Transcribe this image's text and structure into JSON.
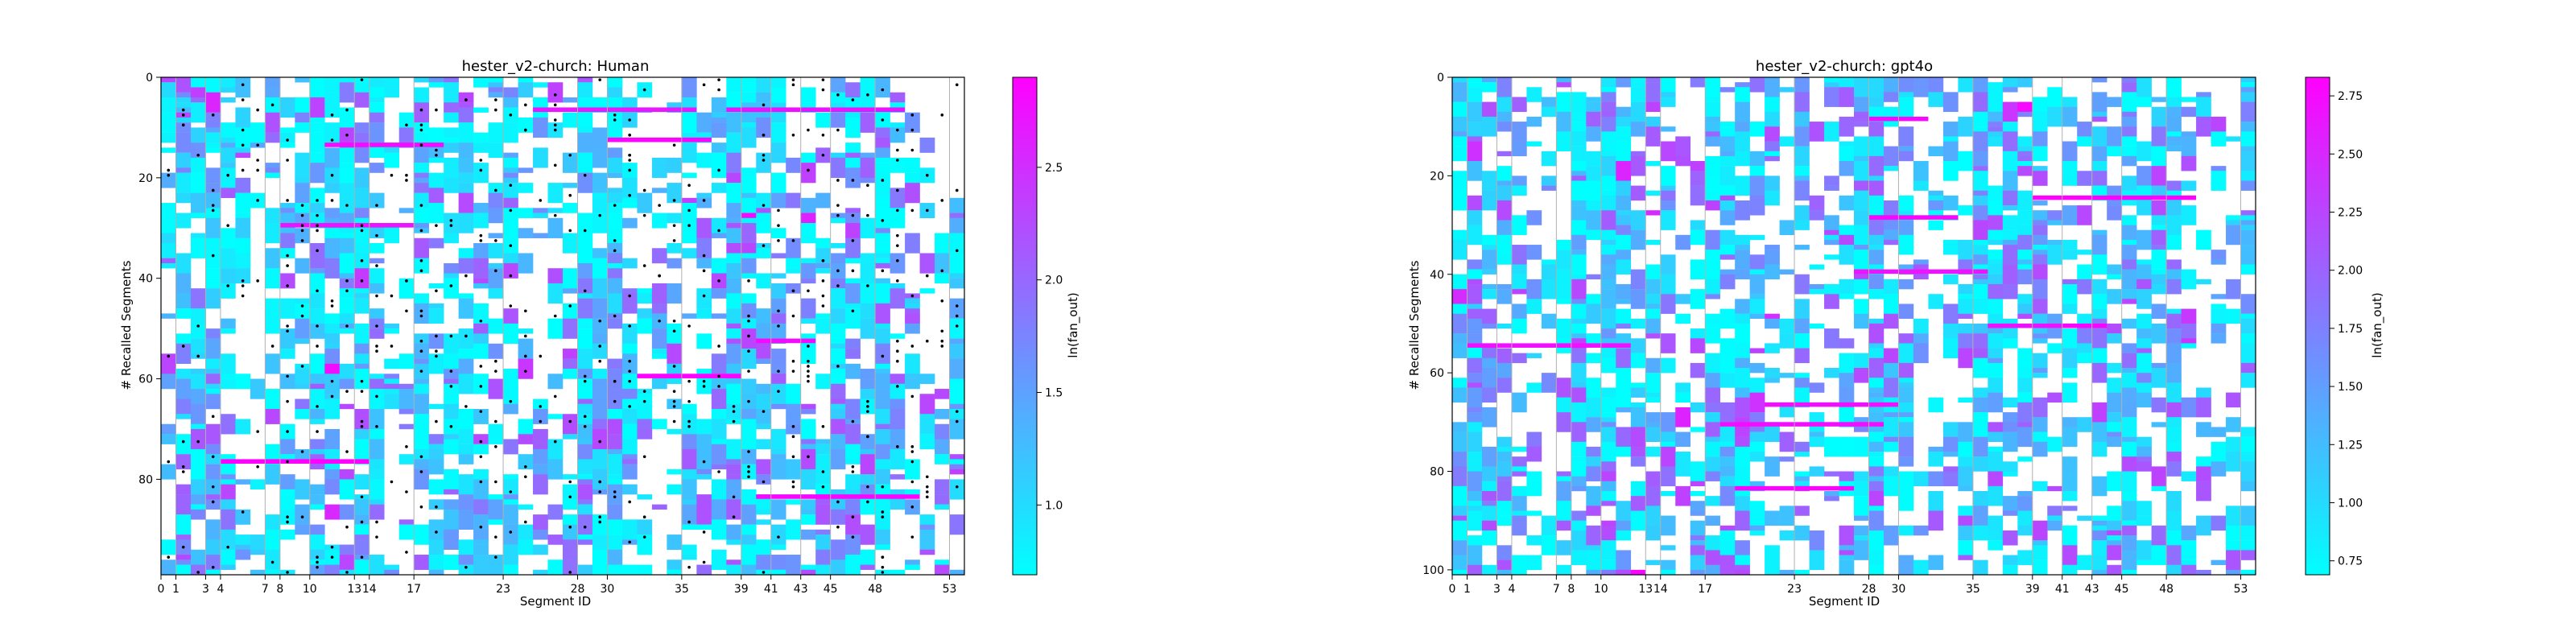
{
  "figure": {
    "background": "#ffffff"
  },
  "colormap": {
    "name": "cool",
    "low": "#00ffff",
    "high": "#ff00ff"
  },
  "chart_data": [
    {
      "type": "heatmap",
      "title": "hester_v2-church: Human",
      "xlabel": "Segment ID",
      "ylabel": "# Recalled Segments",
      "colorbar_label": "ln(fan_out)",
      "x_ticks": [
        0,
        1,
        3,
        4,
        7,
        8,
        10,
        13,
        14,
        17,
        23,
        28,
        30,
        35,
        39,
        41,
        43,
        45,
        48,
        53
      ],
      "xlim": [
        0,
        54
      ],
      "y_ticks": [
        0,
        20,
        40,
        60,
        80
      ],
      "ylim": [
        0,
        99
      ],
      "y_inverted": true,
      "colorbar_ticks": [
        1.0,
        1.5,
        2.0,
        2.5
      ],
      "colorbar_range": [
        0.69,
        2.9
      ],
      "vertical_separators": [
        0,
        1,
        3,
        4,
        7,
        8,
        10,
        13,
        14,
        17,
        23,
        28,
        30,
        35,
        39,
        41,
        43,
        45,
        48,
        53
      ],
      "has_dot_markers": true,
      "seed": 7
    },
    {
      "type": "heatmap",
      "title": "hester_v2-church: gpt4o",
      "xlabel": "Segment ID",
      "ylabel": "# Recalled Segments",
      "colorbar_label": "ln(fan_out)",
      "x_ticks": [
        0,
        1,
        3,
        4,
        7,
        8,
        10,
        13,
        14,
        17,
        23,
        28,
        30,
        35,
        39,
        41,
        43,
        45,
        48,
        53
      ],
      "xlim": [
        0,
        54
      ],
      "y_ticks": [
        0,
        20,
        40,
        60,
        80,
        100
      ],
      "ylim": [
        0,
        101
      ],
      "y_inverted": true,
      "colorbar_ticks": [
        0.75,
        1.0,
        1.25,
        1.5,
        1.75,
        2.0,
        2.25,
        2.5,
        2.75
      ],
      "colorbar_range": [
        0.69,
        2.83
      ],
      "vertical_separators": [
        0,
        1,
        3,
        4,
        7,
        8,
        10,
        13,
        14,
        17,
        23,
        28,
        30,
        35,
        39,
        41,
        43,
        45,
        48,
        53
      ],
      "has_dot_markers": false,
      "seed": 19
    }
  ]
}
